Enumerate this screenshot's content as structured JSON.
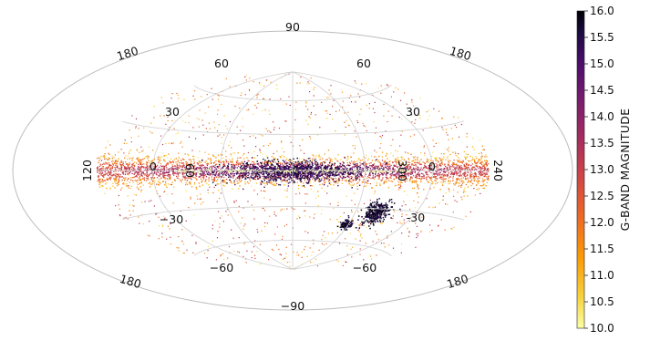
{
  "chart_data": {
    "type": "heatmap",
    "projection": "Aitoff-Hammer (all-sky)",
    "title": "",
    "grid": true,
    "colorbar": {
      "label": "G-BAND MAGNITUDE",
      "range": [
        10.0,
        16.0
      ],
      "ticks": [
        "16.0",
        "15.5",
        "15.0",
        "14.5",
        "14.0",
        "13.5",
        "13.0",
        "12.5",
        "12.0",
        "11.5",
        "11.0",
        "10.5",
        "10.0"
      ],
      "colormap": "inferno (reversed)",
      "placement": "right"
    },
    "gridline_labels": {
      "top": "90",
      "upper_left": "180",
      "upper_right": "180",
      "lat60_left": "60",
      "lat60_right": "60",
      "lat30_left": "30",
      "lat30_right": "30",
      "equator_120": "120",
      "equator_0_left": "0",
      "equator_60": "60",
      "equator_300": "300",
      "equator_0_right": "0",
      "equator_240": "240",
      "lmc_label": "-30",
      "latm30_left": "−30",
      "latm60_left": "−60",
      "latm60_right": "−60",
      "lower_left": "180",
      "lower_right": "180",
      "bottom": "−90"
    },
    "features": [
      {
        "name": "Galactic plane band",
        "b_range_deg": [
          -12,
          12
        ]
      },
      {
        "name": "Large Magellanic Cloud",
        "l_deg": 280,
        "b_deg": -33
      },
      {
        "name": "Small Magellanic Cloud",
        "l_deg": 303,
        "b_deg": -44
      }
    ]
  }
}
